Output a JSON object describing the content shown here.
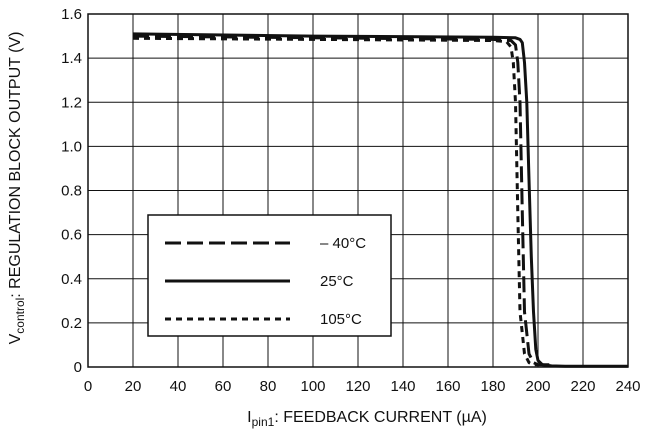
{
  "chart_data": {
    "type": "line",
    "xlabel": {
      "main": "I",
      "sub": "pin1",
      "rest": ": FEEDBACK CURRENT (µA)"
    },
    "ylabel": {
      "main": "V",
      "sub": "control",
      "rest": ": REGULATION BLOCK OUTPUT (V)"
    },
    "xlim": [
      0,
      240
    ],
    "ylim": [
      0,
      1.6
    ],
    "xticks": [
      0,
      20,
      40,
      60,
      80,
      100,
      120,
      140,
      160,
      180,
      200,
      220,
      240
    ],
    "xtick_labels": [
      "0",
      "20",
      "40",
      "60",
      "80",
      "100",
      "120",
      "140",
      "160",
      "180",
      "200",
      "220",
      "240"
    ],
    "yticks": [
      0,
      0.2,
      0.4,
      0.6,
      0.8,
      1.0,
      1.2,
      1.4,
      1.6
    ],
    "ytick_labels": [
      "0",
      "0.2",
      "0.4",
      "0.6",
      "0.8",
      "1.0",
      "1.2",
      "1.4",
      "1.6"
    ],
    "grid": true,
    "legend_position": "lower-left",
    "series": [
      {
        "name": "– 40°C",
        "style": "long-dash",
        "x": [
          20,
          180,
          188,
          190,
          191,
          192,
          193,
          194,
          196,
          198,
          200,
          202,
          205
        ],
        "y": [
          1.5,
          1.485,
          1.48,
          1.46,
          1.38,
          1.2,
          0.7,
          0.25,
          0.06,
          0.02,
          0.01,
          0.01,
          0.01
        ]
      },
      {
        "name": "25°C",
        "style": "solid",
        "x": [
          20,
          100,
          180,
          190,
          192,
          193,
          194,
          195,
          196,
          197,
          198,
          199,
          200,
          202,
          206,
          212,
          240
        ],
        "y": [
          1.51,
          1.5,
          1.495,
          1.492,
          1.485,
          1.47,
          1.38,
          1.2,
          0.85,
          0.5,
          0.25,
          0.08,
          0.03,
          0.01,
          0.005,
          0.003,
          0.003
        ]
      },
      {
        "name": "105°C",
        "style": "short-dash",
        "x": [
          20,
          180,
          186,
          188,
          189,
          190,
          191,
          192,
          194,
          196,
          198,
          200
        ],
        "y": [
          1.49,
          1.48,
          1.475,
          1.45,
          1.38,
          1.2,
          0.7,
          0.25,
          0.06,
          0.02,
          0.01,
          0.01
        ]
      }
    ]
  },
  "colors": {
    "line": "#111111",
    "grid": "#111111",
    "background": "#ffffff"
  }
}
